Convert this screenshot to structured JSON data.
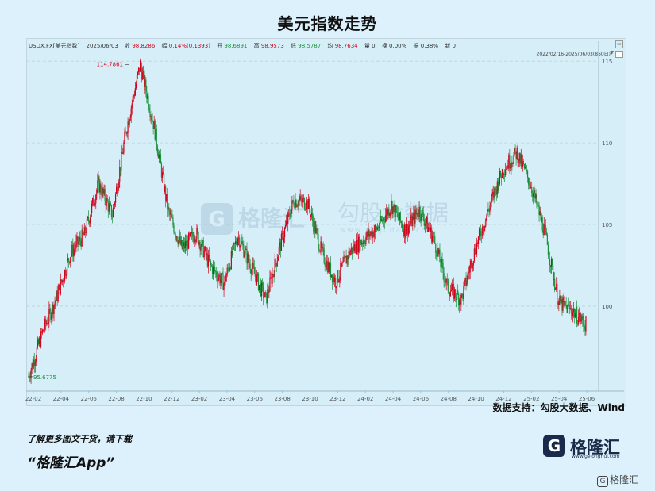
{
  "title": "美元指数走势",
  "info": {
    "symbol": "USDX.FX[美元指数]",
    "date": "2025/06/03",
    "close_label": "收",
    "close": "98.8286",
    "change_label": "幅",
    "change": "0.14%(0.1393)",
    "open_label": "开",
    "open": "98.6891",
    "high_label": "高",
    "high": "98.9573",
    "low_label": "低",
    "low": "98.5787",
    "avg_label": "均",
    "avg": "98.7634",
    "vol_label": "量",
    "vol": "0",
    "turnover_label": "换",
    "turnover": "0.00%",
    "amp_label": "振",
    "amp": "0.38%",
    "new_label": "新",
    "new": "0"
  },
  "range_label": "2022/02/16-2025/06/03(860日)",
  "watermark_left": "格隆汇",
  "watermark_right": "勾股大数据",
  "watermark_url": "www.gogudata.com",
  "source": "数据支持：勾股大数据、Wind",
  "footer": {
    "line1": "了解更多图文干货，请下载",
    "line2": "“格隆汇App”",
    "logo_text": "格隆汇",
    "logo_url": "www.gelonghui.com",
    "corner_logo": "格隆汇"
  },
  "colors": {
    "up": "#d0021b",
    "down": "#1a8f3a",
    "axis": "#555555",
    "grid": "#b9d3de"
  },
  "chart_data": {
    "type": "line",
    "title": "美元指数走势",
    "x_tick_labels": [
      "22-02",
      "22-04",
      "22-06",
      "22-08",
      "22-10",
      "22-12",
      "23-02",
      "23-04",
      "23-06",
      "23-08",
      "23-10",
      "23-12",
      "24-02",
      "24-04",
      "24-06",
      "24-08",
      "24-10",
      "24-12",
      "25-02",
      "25-04",
      "25-06"
    ],
    "y_tick_labels": [
      "100",
      "105",
      "110",
      "115"
    ],
    "ylim": [
      94.8,
      115.3
    ],
    "grid": true,
    "annotations": [
      {
        "label": "114.7861",
        "x": "2022-09",
        "y": 114.7861
      },
      {
        "label": "95.6775",
        "x": "2022-02",
        "y": 95.6775
      }
    ],
    "x": [
      "2022-02",
      "2022-03",
      "2022-04",
      "2022-05",
      "2022-06",
      "2022-07",
      "2022-08",
      "2022-09",
      "2022-10",
      "2022-11",
      "2022-12",
      "2023-01",
      "2023-02",
      "2023-03",
      "2023-04",
      "2023-05",
      "2023-06",
      "2023-07",
      "2023-08",
      "2023-09",
      "2023-10",
      "2023-11",
      "2023-12",
      "2024-01",
      "2024-02",
      "2024-03",
      "2024-04",
      "2024-05",
      "2024-06",
      "2024-07",
      "2024-08",
      "2024-09",
      "2024-10",
      "2024-11",
      "2024-12",
      "2025-01",
      "2025-02",
      "2025-03",
      "2025-04",
      "2025-05",
      "2025-06"
    ],
    "series": [
      {
        "values": [
          95.7,
          98.4,
          100.5,
          103.2,
          104.4,
          107.5,
          105.6,
          110.8,
          114.8,
          111.0,
          105.8,
          103.5,
          104.5,
          102.5,
          101.4,
          104.3,
          102.3,
          100.4,
          103.6,
          106.5,
          106.3,
          103.3,
          101.5,
          103.3,
          104.1,
          104.8,
          106.2,
          104.6,
          105.9,
          104.2,
          101.2,
          100.4,
          103.5,
          106.0,
          108.4,
          109.4,
          107.4,
          104.5,
          100.2,
          99.7,
          98.8
        ]
      }
    ]
  }
}
